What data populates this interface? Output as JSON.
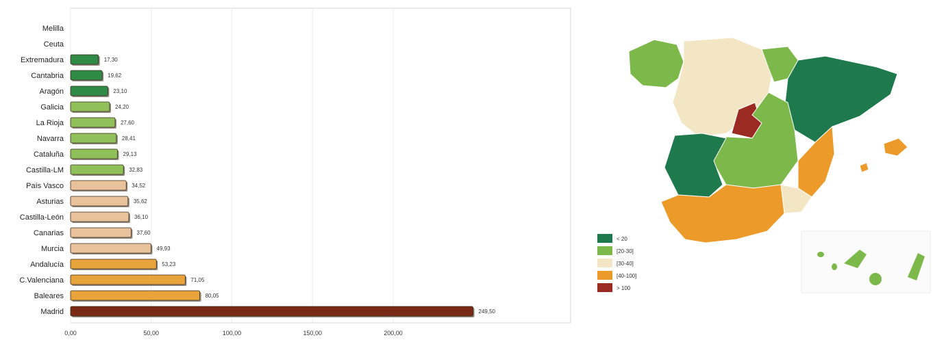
{
  "chart_data": {
    "type": "bar",
    "orientation": "horizontal",
    "categories": [
      "Madrid",
      "Baleares",
      "C.Valenciana",
      "Andalucía",
      "Murcia",
      "Canarias",
      "Castilla-León",
      "Asturias",
      "País Vasco",
      "Castilla-LM",
      "Cataluña",
      "Navarra",
      "La Rioja",
      "Galicia",
      "Aragón",
      "Cantabria",
      "Extremadura",
      "Ceuta",
      "Melilla"
    ],
    "values": [
      249.5,
      80.1,
      71.1,
      53.2,
      49.9,
      37.6,
      36.1,
      35.6,
      34.5,
      32.8,
      29.1,
      28.4,
      27.6,
      24.2,
      23.1,
      19.6,
      17.3,
      0,
      0
    ],
    "value_labels": [
      "249,50",
      "80,05",
      "71,05",
      "53,23",
      "49,93",
      "37,60",
      "36,10",
      "35,62",
      "34,52",
      "32,83",
      "29,13",
      "28,41",
      "27,60",
      "24,20",
      "23,10",
      "19,62",
      "17,30",
      "",
      ""
    ],
    "colors": [
      "#7a2a14",
      "#e8a33a",
      "#e8a33a",
      "#e8a33a",
      "#e8c29a",
      "#e8c29a",
      "#e8c29a",
      "#e8c29a",
      "#e8c29a",
      "#8fc05a",
      "#8fc05a",
      "#8fc05a",
      "#8fc05a",
      "#8fc05a",
      "#2f8a45",
      "#2f8a45",
      "#2f8a45",
      "#2f8a45",
      "#2f8a45"
    ],
    "xticks": [
      "0,00",
      "50,00",
      "100,00",
      "150,00",
      "200,00"
    ],
    "xlim": [
      0,
      310
    ],
    "title": "",
    "xlabel": "",
    "ylabel": ""
  },
  "map": {
    "legend": [
      {
        "label": "< 20",
        "color": "#1e7a4c"
      },
      {
        "label": "[20-30]",
        "color": "#7db84a"
      },
      {
        "label": "[30-40]",
        "color": "#f3e6c4"
      },
      {
        "label": "[40-100]",
        "color": "#ec9a2a"
      },
      {
        "label": "> 100",
        "color": "#9b2a22"
      }
    ]
  }
}
